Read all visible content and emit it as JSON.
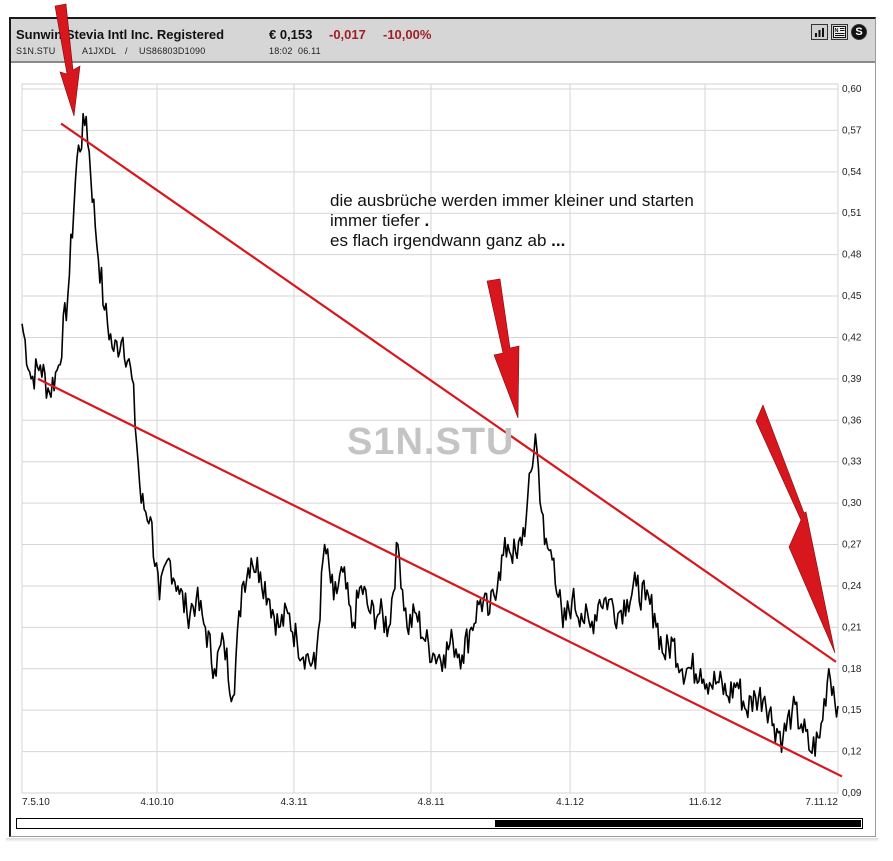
{
  "header": {
    "title": "Sunwin Stevia Intl Inc. Registered",
    "price": "€ 0,153",
    "change": "-0,017",
    "change_pct": "-10,00%",
    "symbol": "S1N.STU",
    "separator1": "/",
    "wkn": "A1JXDL",
    "separator2": "/",
    "isin": "US86803D1090",
    "time": "18:02",
    "date": "06.11",
    "icons": [
      "bar-chart-icon",
      "news-icon",
      "s-icon"
    ],
    "colors": {
      "negative": "#a01e28",
      "header_bg": "#d6d6d6"
    }
  },
  "annotation": {
    "line1": "die ausbrüche werden immer kleiner und starten",
    "line2": "immer tiefer ",
    "line2_dot": ".",
    "line3": "es flach irgendwann ganz ab ",
    "line3_dots": "..."
  },
  "watermark": "S1N.STU",
  "chart_data": {
    "type": "line",
    "title": "Sunwin Stevia Intl Inc. Registered (S1N.STU)",
    "xlabel": "",
    "ylabel": "",
    "x_tick_labels": [
      "7.5.10",
      "4.10.10",
      "4.3.11",
      "4.8.11",
      "4.1.12",
      "11.6.12",
      "7.11.12"
    ],
    "y_tick_labels": [
      "0,60",
      "0,57",
      "0,54",
      "0,51",
      "0,48",
      "0,45",
      "0,42",
      "0,39",
      "0,36",
      "0,33",
      "0,30",
      "0,27",
      "0,24",
      "0,21",
      "0,18",
      "0,15",
      "0,12",
      "0,09"
    ],
    "ylim": [
      0.09,
      0.6
    ],
    "grid": true,
    "legend": "none",
    "series": [
      {
        "name": "S1N.STU price (EUR)",
        "color": "#000000",
        "x": [
          "May 2010",
          "mid May 2010",
          "late May 2010",
          "early Jun 2010",
          "mid Jun 2010",
          "late Jun 2010",
          "early Jul 2010",
          "mid Jul 2010",
          "late Jul 2010",
          "early Aug 2010",
          "mid Aug 2010",
          "late Aug 2010",
          "early Sep 2010",
          "mid Sep 2010",
          "late Sep 2010",
          "early Oct 2010",
          "mid Oct 2010",
          "late Oct 2010",
          "early Nov 2010",
          "mid Nov 2010",
          "late Nov 2010",
          "early Dec 2010",
          "mid Dec 2010",
          "late Dec 2010",
          "early Jan 2011",
          "mid Jan 2011",
          "late Jan 2011",
          "early Feb 2011",
          "mid Feb 2011",
          "early Mar 2011",
          "mid Mar 2011",
          "late Mar 2011",
          "early Apr 2011",
          "mid Apr 2011",
          "late Apr 2011",
          "early May 2011",
          "mid May 2011",
          "late May 2011",
          "early Jun 2011",
          "mid Jun 2011",
          "late Jun 2011",
          "early Jul 2011",
          "mid Jul 2011",
          "early Aug 2011",
          "mid Aug 2011",
          "late Aug 2011",
          "early Sep 2011",
          "mid Sep 2011",
          "late Sep 2011",
          "early Oct 2011",
          "mid Oct 2011",
          "late Oct 2011",
          "early Nov 2011",
          "mid Nov 2011",
          "late Nov 2011",
          "early Dec 2011",
          "mid Dec 2011",
          "late Dec 2011",
          "early Jan 2012",
          "mid Jan 2012",
          "late Jan 2012",
          "early Feb 2012",
          "mid Feb 2012",
          "late Feb 2012",
          "early Mar 2012",
          "mid Mar 2012",
          "late Mar 2012",
          "early Apr 2012",
          "mid Apr 2012",
          "late Apr 2012",
          "early May 2012",
          "mid May 2012",
          "late May 2012",
          "early Jun 2012",
          "mid Jun 2012",
          "late Jun 2012",
          "early Jul 2012",
          "mid Jul 2012",
          "late Jul 2012",
          "early Aug 2012",
          "mid Aug 2012",
          "late Aug 2012",
          "early Sep 2012",
          "mid Sep 2012",
          "late Sep 2012",
          "early Oct 2012",
          "mid Oct 2012",
          "late Oct 2012",
          "early Nov 2012",
          "6 Nov 2012"
        ],
        "values": [
          0.43,
          0.39,
          0.4,
          0.38,
          0.4,
          0.45,
          0.55,
          0.58,
          0.5,
          0.44,
          0.41,
          0.42,
          0.39,
          0.3,
          0.29,
          0.23,
          0.26,
          0.24,
          0.22,
          0.23,
          0.21,
          0.18,
          0.2,
          0.16,
          0.24,
          0.26,
          0.25,
          0.23,
          0.21,
          0.22,
          0.2,
          0.19,
          0.18,
          0.27,
          0.23,
          0.25,
          0.21,
          0.24,
          0.22,
          0.22,
          0.21,
          0.27,
          0.21,
          0.22,
          0.2,
          0.19,
          0.19,
          0.2,
          0.19,
          0.21,
          0.23,
          0.22,
          0.25,
          0.27,
          0.26,
          0.29,
          0.35,
          0.27,
          0.26,
          0.21,
          0.23,
          0.22,
          0.21,
          0.23,
          0.23,
          0.22,
          0.23,
          0.24,
          0.23,
          0.22,
          0.19,
          0.2,
          0.18,
          0.18,
          0.18,
          0.17,
          0.17,
          0.16,
          0.17,
          0.15,
          0.16,
          0.16,
          0.14,
          0.13,
          0.15,
          0.14,
          0.12,
          0.13,
          0.18,
          0.153
        ]
      },
      {
        "name": "upper trendline",
        "color": "#d8161e",
        "x": [
          "Jul 2010",
          "6 Nov 2012"
        ],
        "values": [
          0.575,
          0.185
        ]
      },
      {
        "name": "lower trendline",
        "color": "#d8161e",
        "x": [
          "May 2010",
          "7 Nov 2012"
        ],
        "values": [
          0.39,
          0.102
        ]
      }
    ],
    "annotations": [
      {
        "type": "arrow",
        "color": "#d8161e",
        "points_to": "peak ~0.58 (Jul 2010)"
      },
      {
        "type": "arrow",
        "color": "#d8161e",
        "points_to": "peak ~0.35 (Dec 2011)"
      },
      {
        "type": "arrow",
        "color": "#d8161e",
        "points_to": "peak ~0.18 (Nov 2012)"
      },
      {
        "type": "text",
        "text": "die ausbrüche werden immer kleiner und starten immer tiefer . es flach irgendwann ganz ab ..."
      }
    ]
  },
  "scrollbar": {
    "thumb_start_pct": 56.5,
    "thumb_width_pct": 43.5
  }
}
